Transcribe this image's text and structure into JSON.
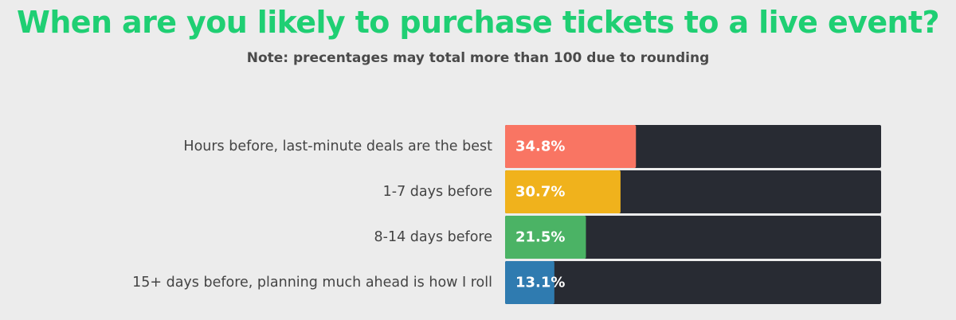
{
  "chart_data": {
    "type": "bar",
    "orientation": "horizontal",
    "title": "When are you likely to purchase tickets to a live event?",
    "subtitle": "Note: precentages may total more than 100 due to rounding",
    "categories": [
      "Hours before, last-minute deals are the best",
      "1-7 days before",
      "8-14 days before",
      "15+ days before, planning much ahead is how I roll"
    ],
    "values": [
      34.8,
      30.7,
      21.5,
      13.1
    ],
    "value_labels": [
      "34.8%",
      "30.7%",
      "21.5%",
      "13.1%"
    ],
    "bar_colors": [
      "#f97563",
      "#f0b21c",
      "#4bb365",
      "#2f7bb0"
    ],
    "track_color": "#282b33",
    "xlim": [
      0,
      100
    ],
    "grid": false
  },
  "colors": {
    "title": "#1fcf73",
    "subtitle": "#4a4a4a",
    "category_label": "#444444",
    "value_label": "#ffffff",
    "background": "#ececec"
  }
}
